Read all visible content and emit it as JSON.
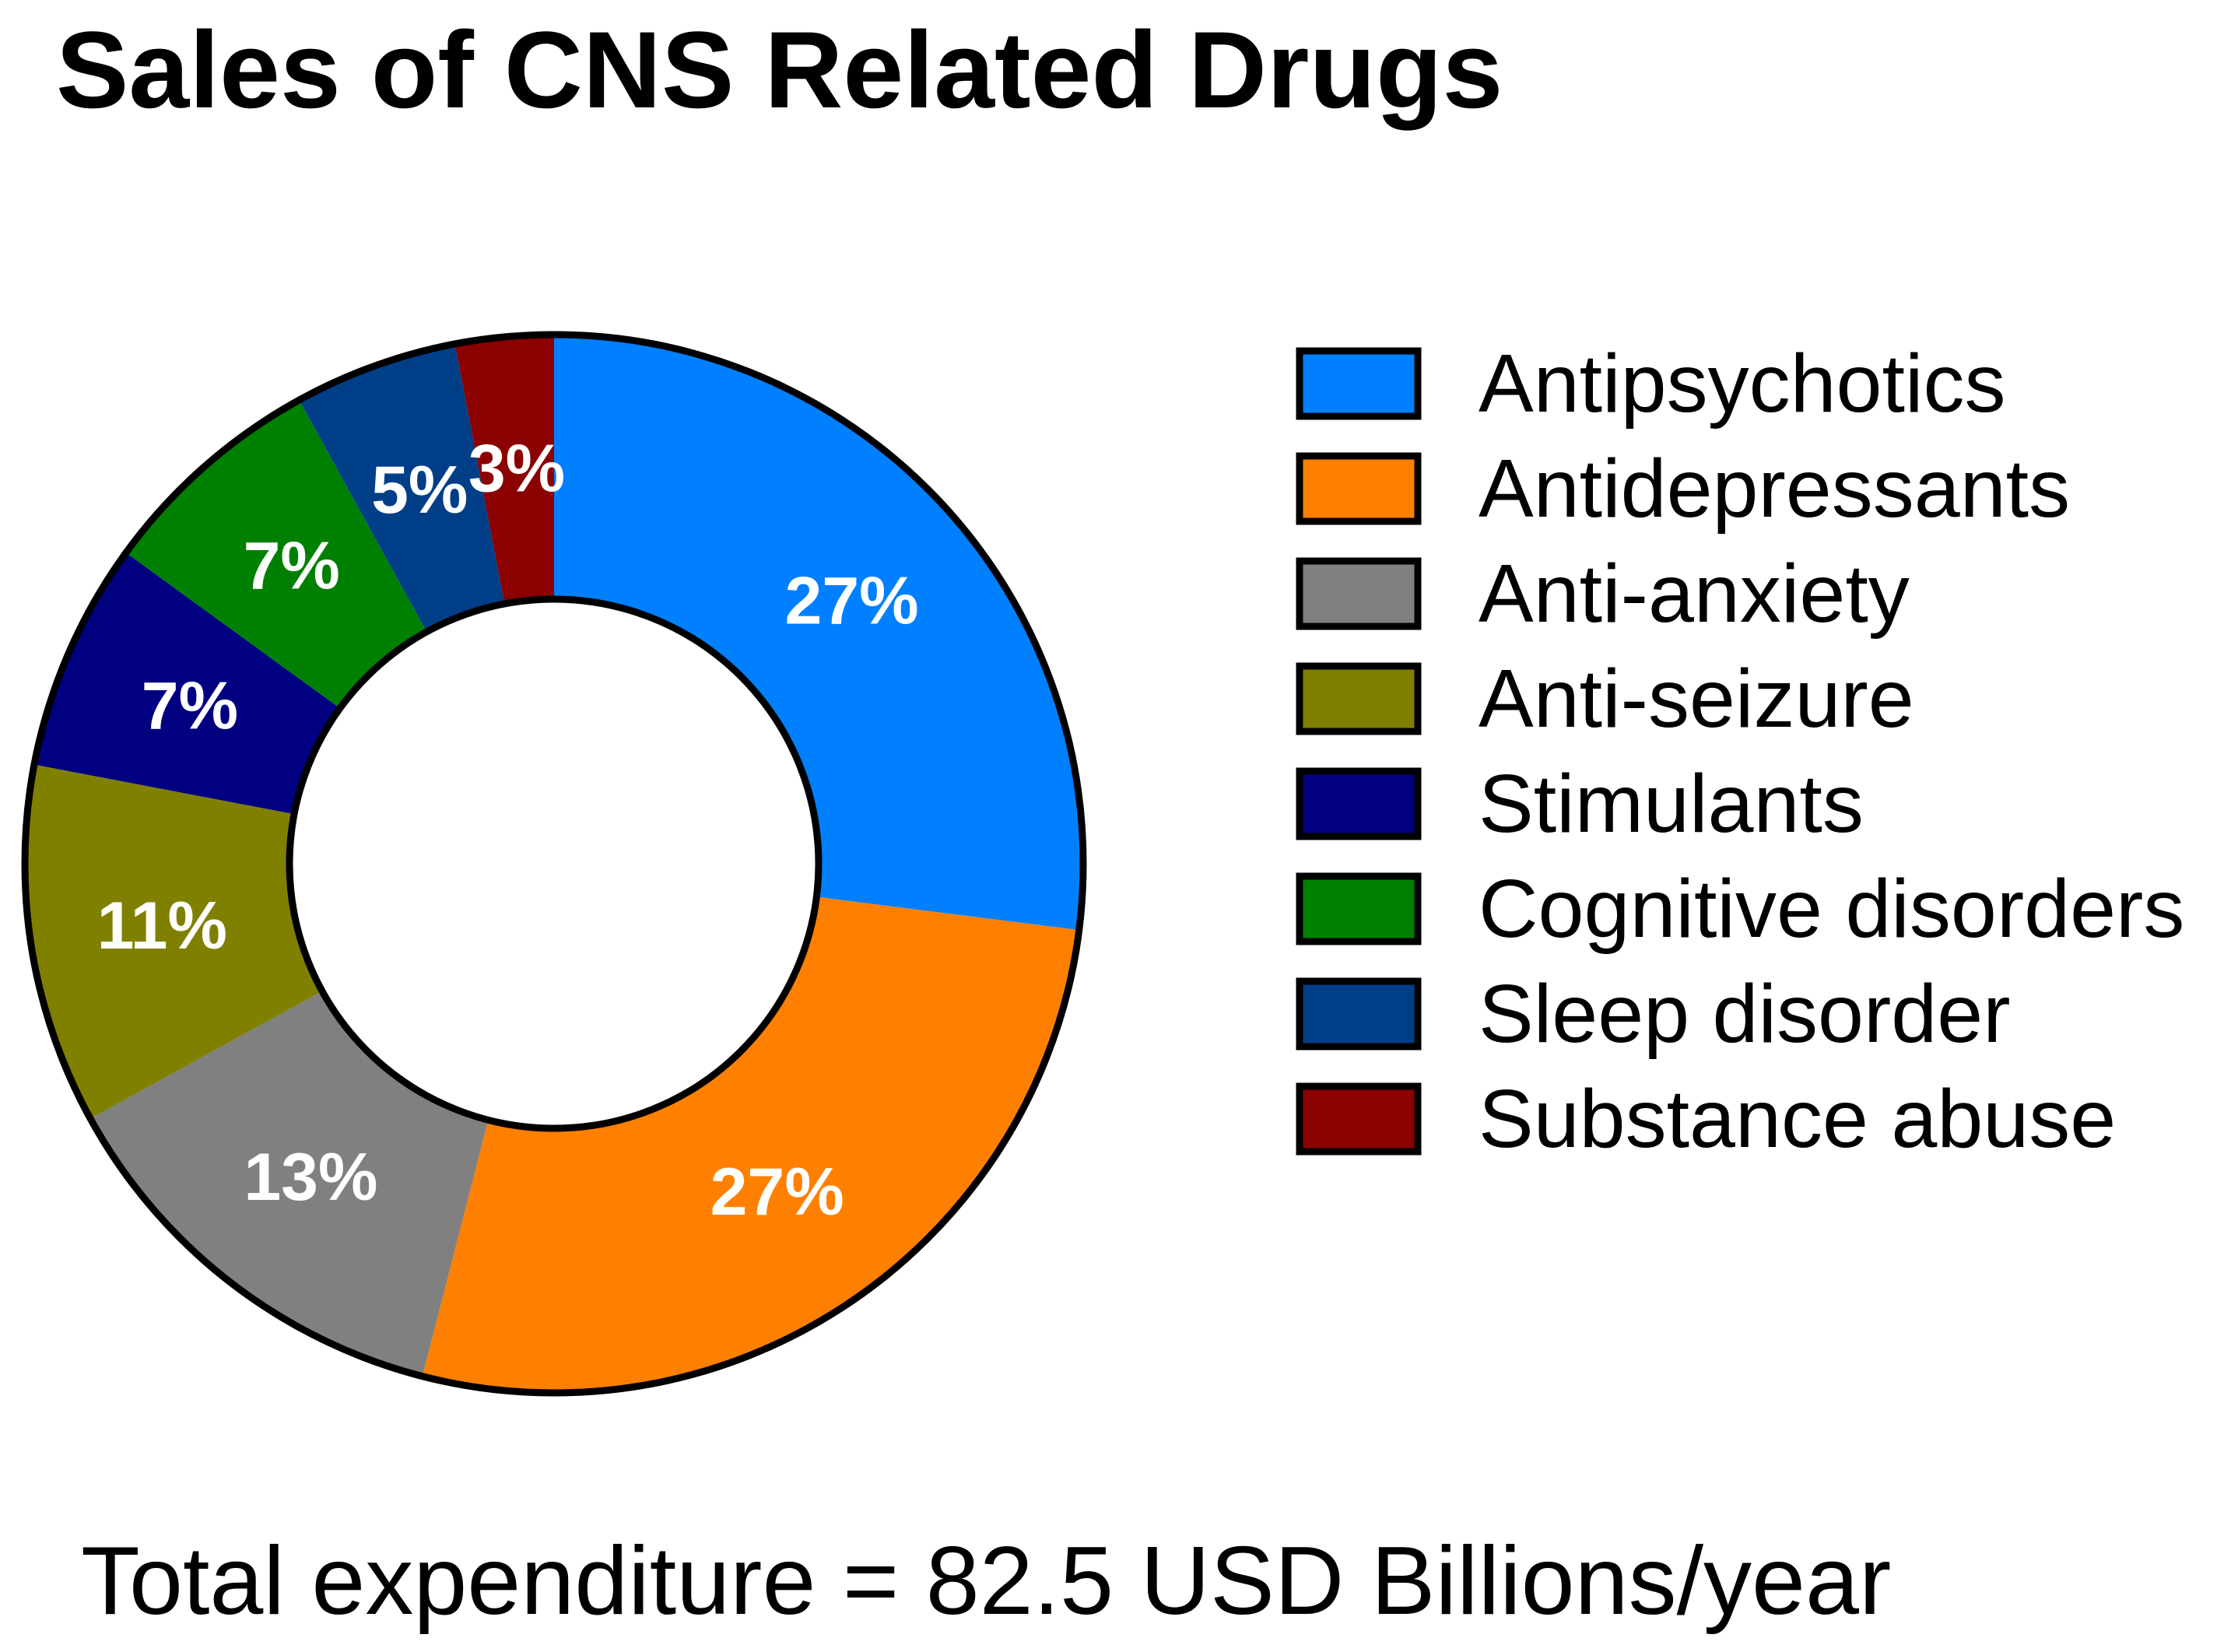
{
  "chart_data": {
    "type": "pie",
    "variant": "donut",
    "title": "Sales of CNS Related Drugs",
    "categories": [
      "Antipsychotics",
      "Antidepressants",
      "Anti-anxiety",
      "Anti-seizure",
      "Stimulants",
      "Cognitive disorders",
      "Sleep disorder",
      "Substance abuse"
    ],
    "values": [
      27,
      27,
      13,
      11,
      7,
      7,
      5,
      3
    ],
    "value_labels": [
      "27%",
      "27%",
      "13%",
      "11%",
      "7%",
      "7%",
      "5%",
      "3%"
    ],
    "colors": [
      "#0080ff",
      "#ff8000",
      "#808080",
      "#808000",
      "#000080",
      "#008000",
      "#003f88",
      "#8b0000"
    ],
    "label_color": "#ffffff",
    "outline_color": "#000000",
    "start_angle_deg": 0,
    "direction": "clockwise",
    "legend_position": "right",
    "annotation": "Total expenditure = 82.5 USD Billions/year"
  }
}
